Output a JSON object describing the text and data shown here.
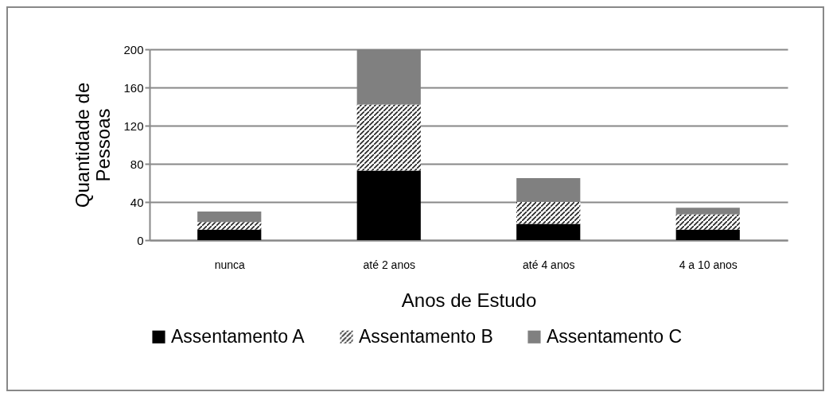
{
  "chart_data": {
    "type": "bar",
    "stacked": true,
    "xlabel": "Anos de Estudo",
    "ylabel": "Quantidade de Pessoas",
    "categories": [
      "nunca",
      "até 2 anos",
      "até 4 anos",
      "4 a 10 anos"
    ],
    "series": [
      {
        "name": "Assentamento A",
        "color": "#000000",
        "values": [
          11,
          73,
          17,
          11
        ]
      },
      {
        "name": "Assentamento B",
        "color": "#ffffff",
        "values": [
          8,
          69,
          23,
          16
        ]
      },
      {
        "name": "Assentamento C",
        "color": "#808080",
        "values": [
          11,
          58,
          25,
          7
        ]
      }
    ],
    "ylim": [
      0,
      200
    ],
    "yticks": [
      0,
      40,
      80,
      120,
      160,
      200
    ],
    "grid": "y",
    "legend": "bottom"
  }
}
